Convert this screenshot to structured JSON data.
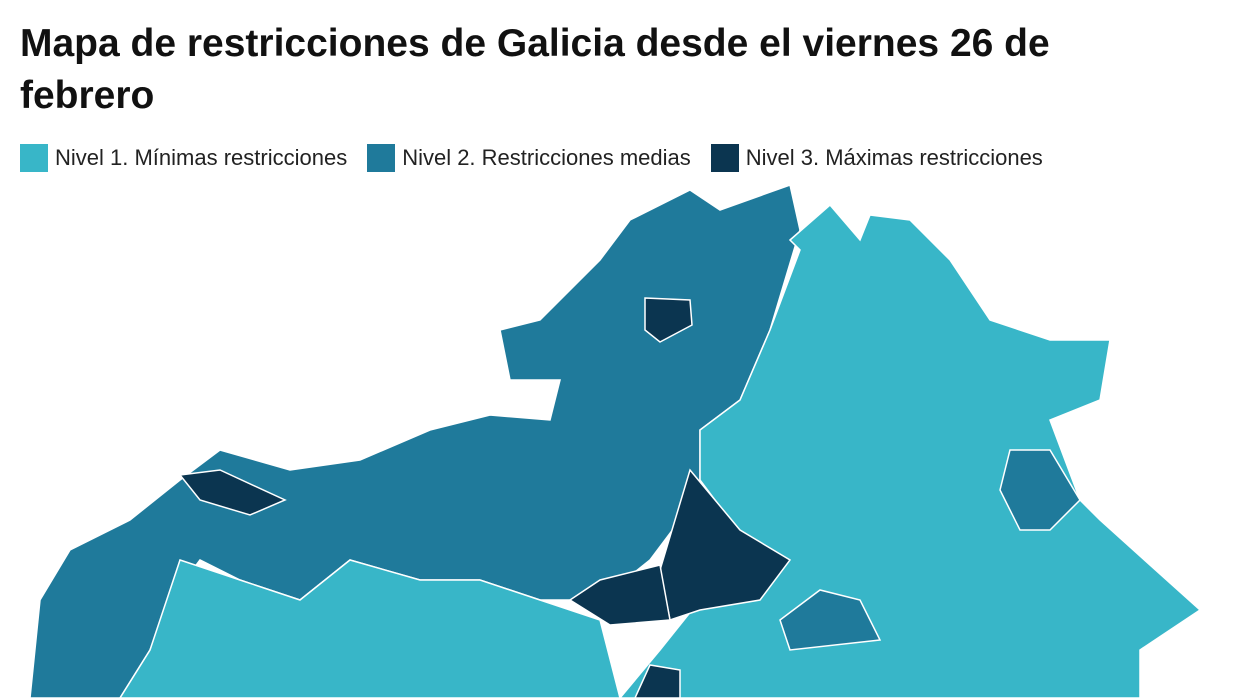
{
  "header": {
    "title_line1": "Mapa de restricciones de Galicia desde el viernes 26 de",
    "title_line2": "febrero"
  },
  "legend": {
    "items": [
      {
        "label": "Nivel 1. Mínimas restricciones",
        "color": "#38b6c8"
      },
      {
        "label": "Nivel 2. Restricciones medias",
        "color": "#1f7a9b"
      },
      {
        "label": "Nivel 3. Máximas restricciones",
        "color": "#0b3550"
      }
    ]
  }
}
